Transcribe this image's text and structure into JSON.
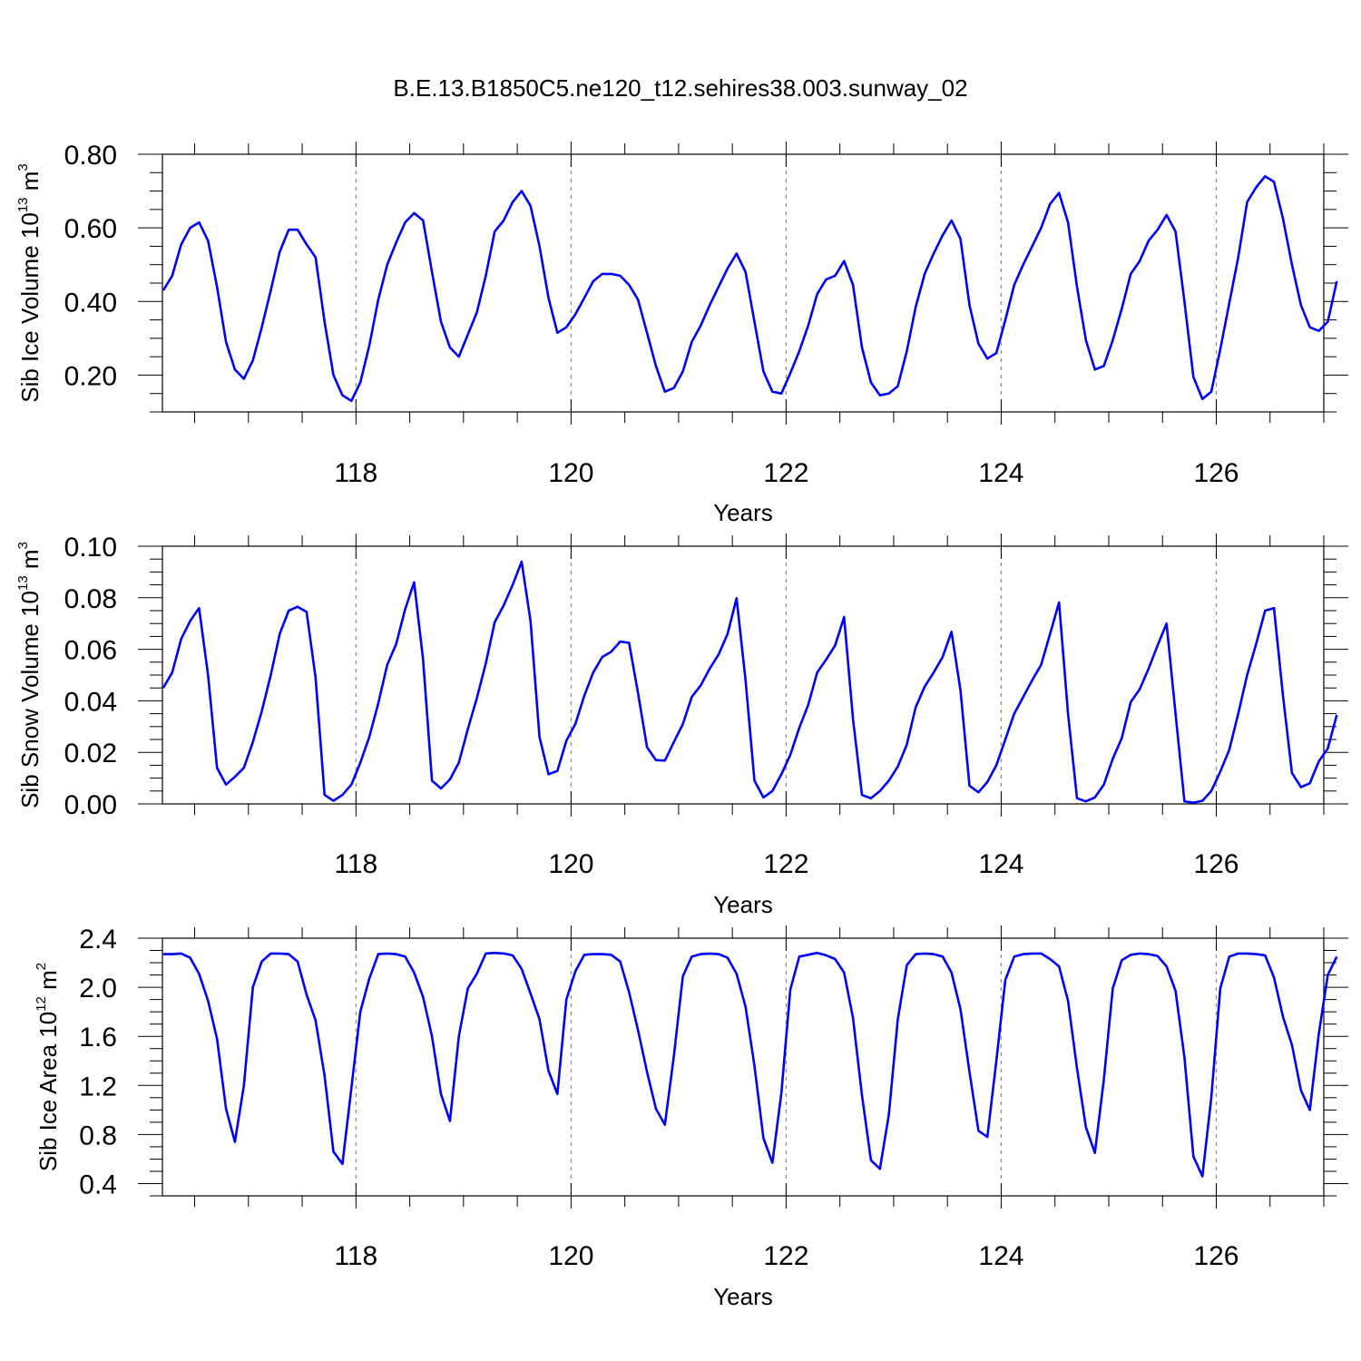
{
  "title": "B.E.13.B1850C5.ne120_t12.sehires38.003.sunway_02",
  "colors": {
    "line": "#0000ff",
    "axes": "#000000",
    "grid": "#888888"
  },
  "chart_data": [
    {
      "type": "line",
      "xlabel": "Years",
      "ylabel": {
        "text": "Sib Ice Volume 10",
        "exponent": "13",
        "unit": "m",
        "unit_exponent": "3"
      },
      "xlim": [
        116.2,
        127.0
      ],
      "ylim": [
        0.1,
        0.8
      ],
      "x_ticks": [
        118,
        120,
        122,
        124,
        126
      ],
      "x_tick_labels": [
        "118",
        "120",
        "122",
        "124",
        "126"
      ],
      "y_ticks": [
        0.2,
        0.4,
        0.6,
        0.8
      ],
      "y_tick_labels": [
        "0.20",
        "0.40",
        "0.60",
        "0.80"
      ],
      "x_minor_step": 0.5,
      "y_minor_step": 0.05,
      "grid": "dashed vertical lines at labeled x ticks",
      "x_start": 116.208,
      "x_step": 0.0833,
      "series": [
        {
          "values": [
            0.43,
            0.47,
            0.555,
            0.6,
            0.615,
            0.565,
            0.44,
            0.29,
            0.215,
            0.19,
            0.24,
            0.33,
            0.43,
            0.535,
            0.595,
            0.595,
            0.555,
            0.52,
            0.345,
            0.2,
            0.145,
            0.13,
            0.18,
            0.28,
            0.405,
            0.5,
            0.56,
            0.615,
            0.64,
            0.62,
            0.48,
            0.345,
            0.275,
            0.25,
            0.31,
            0.37,
            0.47,
            0.59,
            0.62,
            0.67,
            0.7,
            0.66,
            0.55,
            0.41,
            0.315,
            0.33,
            0.365,
            0.41,
            0.455,
            0.475,
            0.475,
            0.47,
            0.445,
            0.405,
            0.315,
            0.225,
            0.155,
            0.165,
            0.21,
            0.29,
            0.335,
            0.39,
            0.44,
            0.49,
            0.53,
            0.48,
            0.345,
            0.21,
            0.155,
            0.15,
            0.205,
            0.265,
            0.335,
            0.42,
            0.46,
            0.47,
            0.51,
            0.445,
            0.275,
            0.18,
            0.145,
            0.15,
            0.17,
            0.265,
            0.385,
            0.475,
            0.53,
            0.58,
            0.62,
            0.57,
            0.39,
            0.285,
            0.245,
            0.26,
            0.35,
            0.445,
            0.5,
            0.55,
            0.6,
            0.665,
            0.695,
            0.615,
            0.44,
            0.295,
            0.215,
            0.225,
            0.295,
            0.38,
            0.475,
            0.51,
            0.565,
            0.595,
            0.635,
            0.59,
            0.4,
            0.195,
            0.135,
            0.155,
            0.27,
            0.395,
            0.52,
            0.67,
            0.71,
            0.74,
            0.725,
            0.625,
            0.5,
            0.39,
            0.33,
            0.32,
            0.345,
            0.455
          ]
        }
      ]
    },
    {
      "type": "line",
      "xlabel": "Years",
      "ylabel": {
        "text": "Sib Snow Volume 10",
        "exponent": "13",
        "unit": "m",
        "unit_exponent": "3"
      },
      "xlim": [
        116.2,
        127.0
      ],
      "ylim": [
        0.0,
        0.1
      ],
      "x_ticks": [
        118,
        120,
        122,
        124,
        126
      ],
      "x_tick_labels": [
        "118",
        "120",
        "122",
        "124",
        "126"
      ],
      "y_ticks": [
        0.0,
        0.02,
        0.04,
        0.06,
        0.08,
        0.1
      ],
      "y_tick_labels": [
        "0.00",
        "0.02",
        "0.04",
        "0.06",
        "0.08",
        "0.10"
      ],
      "x_minor_step": 0.5,
      "y_minor_step": 0.005,
      "grid": "dashed vertical lines at labeled x ticks",
      "x_start": 116.208,
      "x_step": 0.0833,
      "series": [
        {
          "values": [
            0.045,
            0.051,
            0.064,
            0.071,
            0.076,
            0.05,
            0.014,
            0.0075,
            0.0105,
            0.014,
            0.024,
            0.036,
            0.05,
            0.066,
            0.075,
            0.0765,
            0.0745,
            0.049,
            0.0035,
            0.0012,
            0.0035,
            0.0075,
            0.016,
            0.026,
            0.039,
            0.054,
            0.062,
            0.0755,
            0.086,
            0.056,
            0.009,
            0.006,
            0.0095,
            0.016,
            0.029,
            0.041,
            0.0545,
            0.0705,
            0.077,
            0.085,
            0.094,
            0.071,
            0.026,
            0.0115,
            0.0128,
            0.0245,
            0.031,
            0.042,
            0.051,
            0.057,
            0.059,
            0.063,
            0.0625,
            0.043,
            0.022,
            0.017,
            0.0168,
            0.024,
            0.031,
            0.0415,
            0.046,
            0.0525,
            0.058,
            0.066,
            0.0798,
            0.048,
            0.009,
            0.0025,
            0.005,
            0.0115,
            0.019,
            0.0295,
            0.0385,
            0.051,
            0.056,
            0.0615,
            0.0725,
            0.033,
            0.0035,
            0.0022,
            0.005,
            0.009,
            0.0145,
            0.023,
            0.0375,
            0.0455,
            0.051,
            0.057,
            0.0668,
            0.044,
            0.007,
            0.0045,
            0.0085,
            0.015,
            0.025,
            0.035,
            0.0415,
            0.048,
            0.054,
            0.066,
            0.0782,
            0.035,
            0.0022,
            0.001,
            0.0025,
            0.0075,
            0.0175,
            0.0255,
            0.0395,
            0.0445,
            0.0525,
            0.0615,
            0.07,
            0.035,
            0.001,
            0.0005,
            0.0012,
            0.005,
            0.0125,
            0.021,
            0.035,
            0.05,
            0.062,
            0.075,
            0.076,
            0.042,
            0.012,
            0.0065,
            0.008,
            0.0165,
            0.0215,
            0.0345
          ]
        }
      ]
    },
    {
      "type": "line",
      "xlabel": "Years",
      "ylabel": {
        "text": "Sib Ice Area 10",
        "exponent": "12",
        "unit": "m",
        "unit_exponent": "2"
      },
      "xlim": [
        116.2,
        127.0
      ],
      "ylim": [
        0.3,
        2.4
      ],
      "x_ticks": [
        118,
        120,
        122,
        124,
        126
      ],
      "x_tick_labels": [
        "118",
        "120",
        "122",
        "124",
        "126"
      ],
      "y_ticks": [
        0.4,
        0.8,
        1.2,
        1.6,
        2.0,
        2.4
      ],
      "y_tick_labels": [
        "0.4",
        "0.8",
        "1.2",
        "1.6",
        "2.0",
        "2.4"
      ],
      "x_minor_step": 0.5,
      "y_minor_step": 0.1,
      "grid": "dashed vertical lines at labeled x ticks",
      "x_start": 116.208,
      "x_step": 0.0833,
      "series": [
        {
          "values": [
            2.27,
            2.27,
            2.275,
            2.24,
            2.11,
            1.89,
            1.58,
            1.01,
            0.74,
            1.2,
            2.0,
            2.21,
            2.275,
            2.275,
            2.27,
            2.21,
            1.94,
            1.73,
            1.28,
            0.66,
            0.56,
            1.18,
            1.8,
            2.07,
            2.27,
            2.275,
            2.27,
            2.25,
            2.12,
            1.92,
            1.6,
            1.13,
            0.91,
            1.6,
            1.99,
            2.11,
            2.275,
            2.28,
            2.275,
            2.26,
            2.15,
            1.95,
            1.74,
            1.32,
            1.13,
            1.9,
            2.13,
            2.265,
            2.27,
            2.27,
            2.265,
            2.21,
            1.96,
            1.65,
            1.31,
            1.01,
            0.88,
            1.44,
            2.09,
            2.25,
            2.27,
            2.275,
            2.27,
            2.24,
            2.11,
            1.84,
            1.36,
            0.77,
            0.57,
            1.14,
            1.98,
            2.25,
            2.265,
            2.28,
            2.26,
            2.23,
            2.12,
            1.75,
            1.12,
            0.59,
            0.52,
            0.96,
            1.74,
            2.18,
            2.27,
            2.275,
            2.27,
            2.25,
            2.12,
            1.82,
            1.31,
            0.83,
            0.78,
            1.4,
            2.06,
            2.25,
            2.27,
            2.275,
            2.275,
            2.23,
            2.17,
            1.89,
            1.34,
            0.86,
            0.65,
            1.25,
            1.99,
            2.22,
            2.265,
            2.275,
            2.27,
            2.255,
            2.17,
            1.97,
            1.43,
            0.62,
            0.46,
            1.1,
            1.99,
            2.25,
            2.275,
            2.275,
            2.27,
            2.26,
            2.08,
            1.76,
            1.53,
            1.16,
            1.0,
            1.62,
            2.1,
            2.25
          ]
        }
      ]
    }
  ]
}
